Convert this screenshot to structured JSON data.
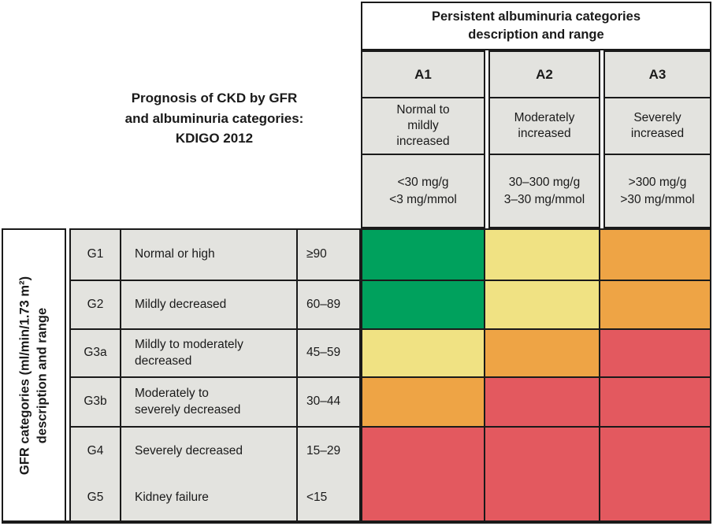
{
  "chart_data": {
    "type": "heatmap",
    "title": "Prognosis of CKD by GFR and albuminuria categories: KDIGO 2012",
    "x_axis_title": "Persistent albuminuria categories description and range",
    "y_axis_title": "GFR categories (ml/min/1.73 m²) description and range",
    "x_categories": [
      "A1",
      "A2",
      "A3"
    ],
    "y_categories": [
      "G1",
      "G2",
      "G3a",
      "G3b",
      "G4",
      "G5"
    ],
    "risk_matrix": [
      [
        "green",
        "yellow",
        "orange"
      ],
      [
        "green",
        "yellow",
        "orange"
      ],
      [
        "yellow",
        "orange",
        "red"
      ],
      [
        "orange",
        "red",
        "red"
      ],
      [
        "red",
        "red",
        "red"
      ],
      [
        "red",
        "red",
        "red"
      ]
    ]
  },
  "left_title": "Prognosis of CKD by GFR\nand albuminuria categories:\nKDIGO 2012",
  "albuminuria_header": {
    "title": "Persistent albuminuria categories\ndescription and range",
    "columns": [
      {
        "code": "A1",
        "description": "Normal to\nmildly\nincreased",
        "range": "<30 mg/g\n<3 mg/mmol"
      },
      {
        "code": "A2",
        "description": "Moderately\nincreased",
        "range": "30–300 mg/g\n3–30 mg/mmol"
      },
      {
        "code": "A3",
        "description": "Severely\nincreased",
        "range": ">300 mg/g\n>30 mg/mmol"
      }
    ]
  },
  "gfr_axis_label": "GFR categories (ml/min/1.73 m²)\ndescription and range",
  "gfr_rows": [
    {
      "code": "G1",
      "description": "Normal or high",
      "range": "≥90"
    },
    {
      "code": "G2",
      "description": "Mildly decreased",
      "range": "60–89"
    },
    {
      "code": "G3a",
      "description": "Mildly to moderately\ndecreased",
      "range": "45–59"
    },
    {
      "code": "G3b",
      "description": "Moderately to\nseverely decreased",
      "range": "30–44"
    },
    {
      "code": "G4",
      "description": "Severely decreased",
      "range": "15–29"
    },
    {
      "code": "G5",
      "description": "Kidney failure",
      "range": "<15"
    }
  ],
  "risk_colors": {
    "green": "#00a15d",
    "yellow": "#f0e283",
    "orange": "#eea445",
    "red": "#e3595f"
  }
}
